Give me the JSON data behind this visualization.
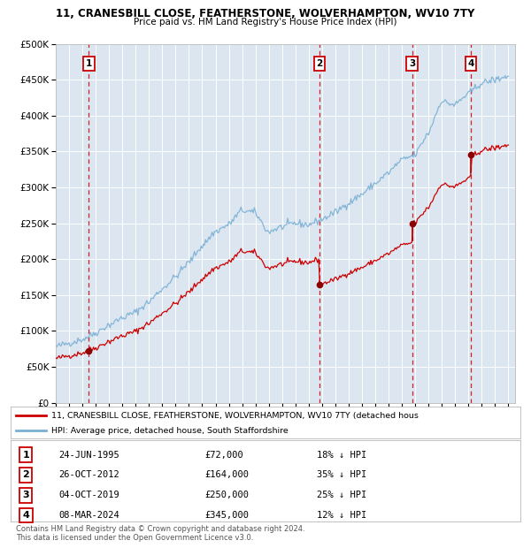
{
  "title_line1": "11, CRANESBILL CLOSE, FEATHERSTONE, WOLVERHAMPTON, WV10 7TY",
  "title_line2": "Price paid vs. HM Land Registry's House Price Index (HPI)",
  "plot_bg_color": "#dce6f1",
  "hpi_color": "#7ab0d4",
  "price_color": "#cc0000",
  "sale_marker_color": "#8b0000",
  "vline_color": "#cc0000",
  "ylim": [
    0,
    500000
  ],
  "yticks": [
    0,
    50000,
    100000,
    150000,
    200000,
    250000,
    300000,
    350000,
    400000,
    450000,
    500000
  ],
  "ytick_labels": [
    "£0",
    "£50K",
    "£100K",
    "£150K",
    "£200K",
    "£250K",
    "£300K",
    "£350K",
    "£400K",
    "£450K",
    "£500K"
  ],
  "xlim_start": 1993.0,
  "xlim_end": 2027.5,
  "xtick_years": [
    1993,
    1994,
    1995,
    1996,
    1997,
    1998,
    1999,
    2000,
    2001,
    2002,
    2003,
    2004,
    2005,
    2006,
    2007,
    2008,
    2009,
    2010,
    2011,
    2012,
    2013,
    2014,
    2015,
    2016,
    2017,
    2018,
    2019,
    2020,
    2021,
    2022,
    2023,
    2024,
    2025,
    2026,
    2027
  ],
  "sale_events": [
    {
      "label": "1",
      "year": 1995.48,
      "price": 72000,
      "date_str": "24-JUN-1995",
      "price_str": "£72,000",
      "hpi_str": "18% ↓ HPI"
    },
    {
      "label": "2",
      "year": 2012.82,
      "price": 164000,
      "date_str": "26-OCT-2012",
      "price_str": "£164,000",
      "hpi_str": "35% ↓ HPI"
    },
    {
      "label": "3",
      "year": 2019.76,
      "price": 250000,
      "date_str": "04-OCT-2019",
      "price_str": "£250,000",
      "hpi_str": "25% ↓ HPI"
    },
    {
      "label": "4",
      "year": 2024.18,
      "price": 345000,
      "date_str": "08-MAR-2024",
      "price_str": "£345,000",
      "hpi_str": "12% ↓ HPI"
    }
  ],
  "legend_line1": "11, CRANESBILL CLOSE, FEATHERSTONE, WOLVERHAMPTON, WV10 7TY (detached hous",
  "legend_line2": "HPI: Average price, detached house, South Staffordshire",
  "footer_line1": "Contains HM Land Registry data © Crown copyright and database right 2024.",
  "footer_line2": "This data is licensed under the Open Government Licence v3.0.",
  "hpi_key_years": [
    1993,
    1994,
    1995,
    1996,
    1997,
    1998,
    1999,
    2000,
    2001,
    2002,
    2003,
    2004,
    2005,
    2006,
    2007,
    2008,
    2009,
    2010,
    2011,
    2012,
    2013,
    2014,
    2015,
    2016,
    2017,
    2018,
    2019,
    2020,
    2021,
    2022,
    2023,
    2024,
    2025,
    2026,
    2027
  ],
  "hpi_key_vals": [
    78000,
    83000,
    88000,
    97000,
    108000,
    118000,
    126000,
    140000,
    158000,
    175000,
    195000,
    218000,
    238000,
    248000,
    268000,
    265000,
    238000,
    245000,
    250000,
    248000,
    255000,
    265000,
    278000,
    290000,
    305000,
    320000,
    338000,
    345000,
    375000,
    420000,
    415000,
    430000,
    445000,
    450000,
    455000
  ]
}
